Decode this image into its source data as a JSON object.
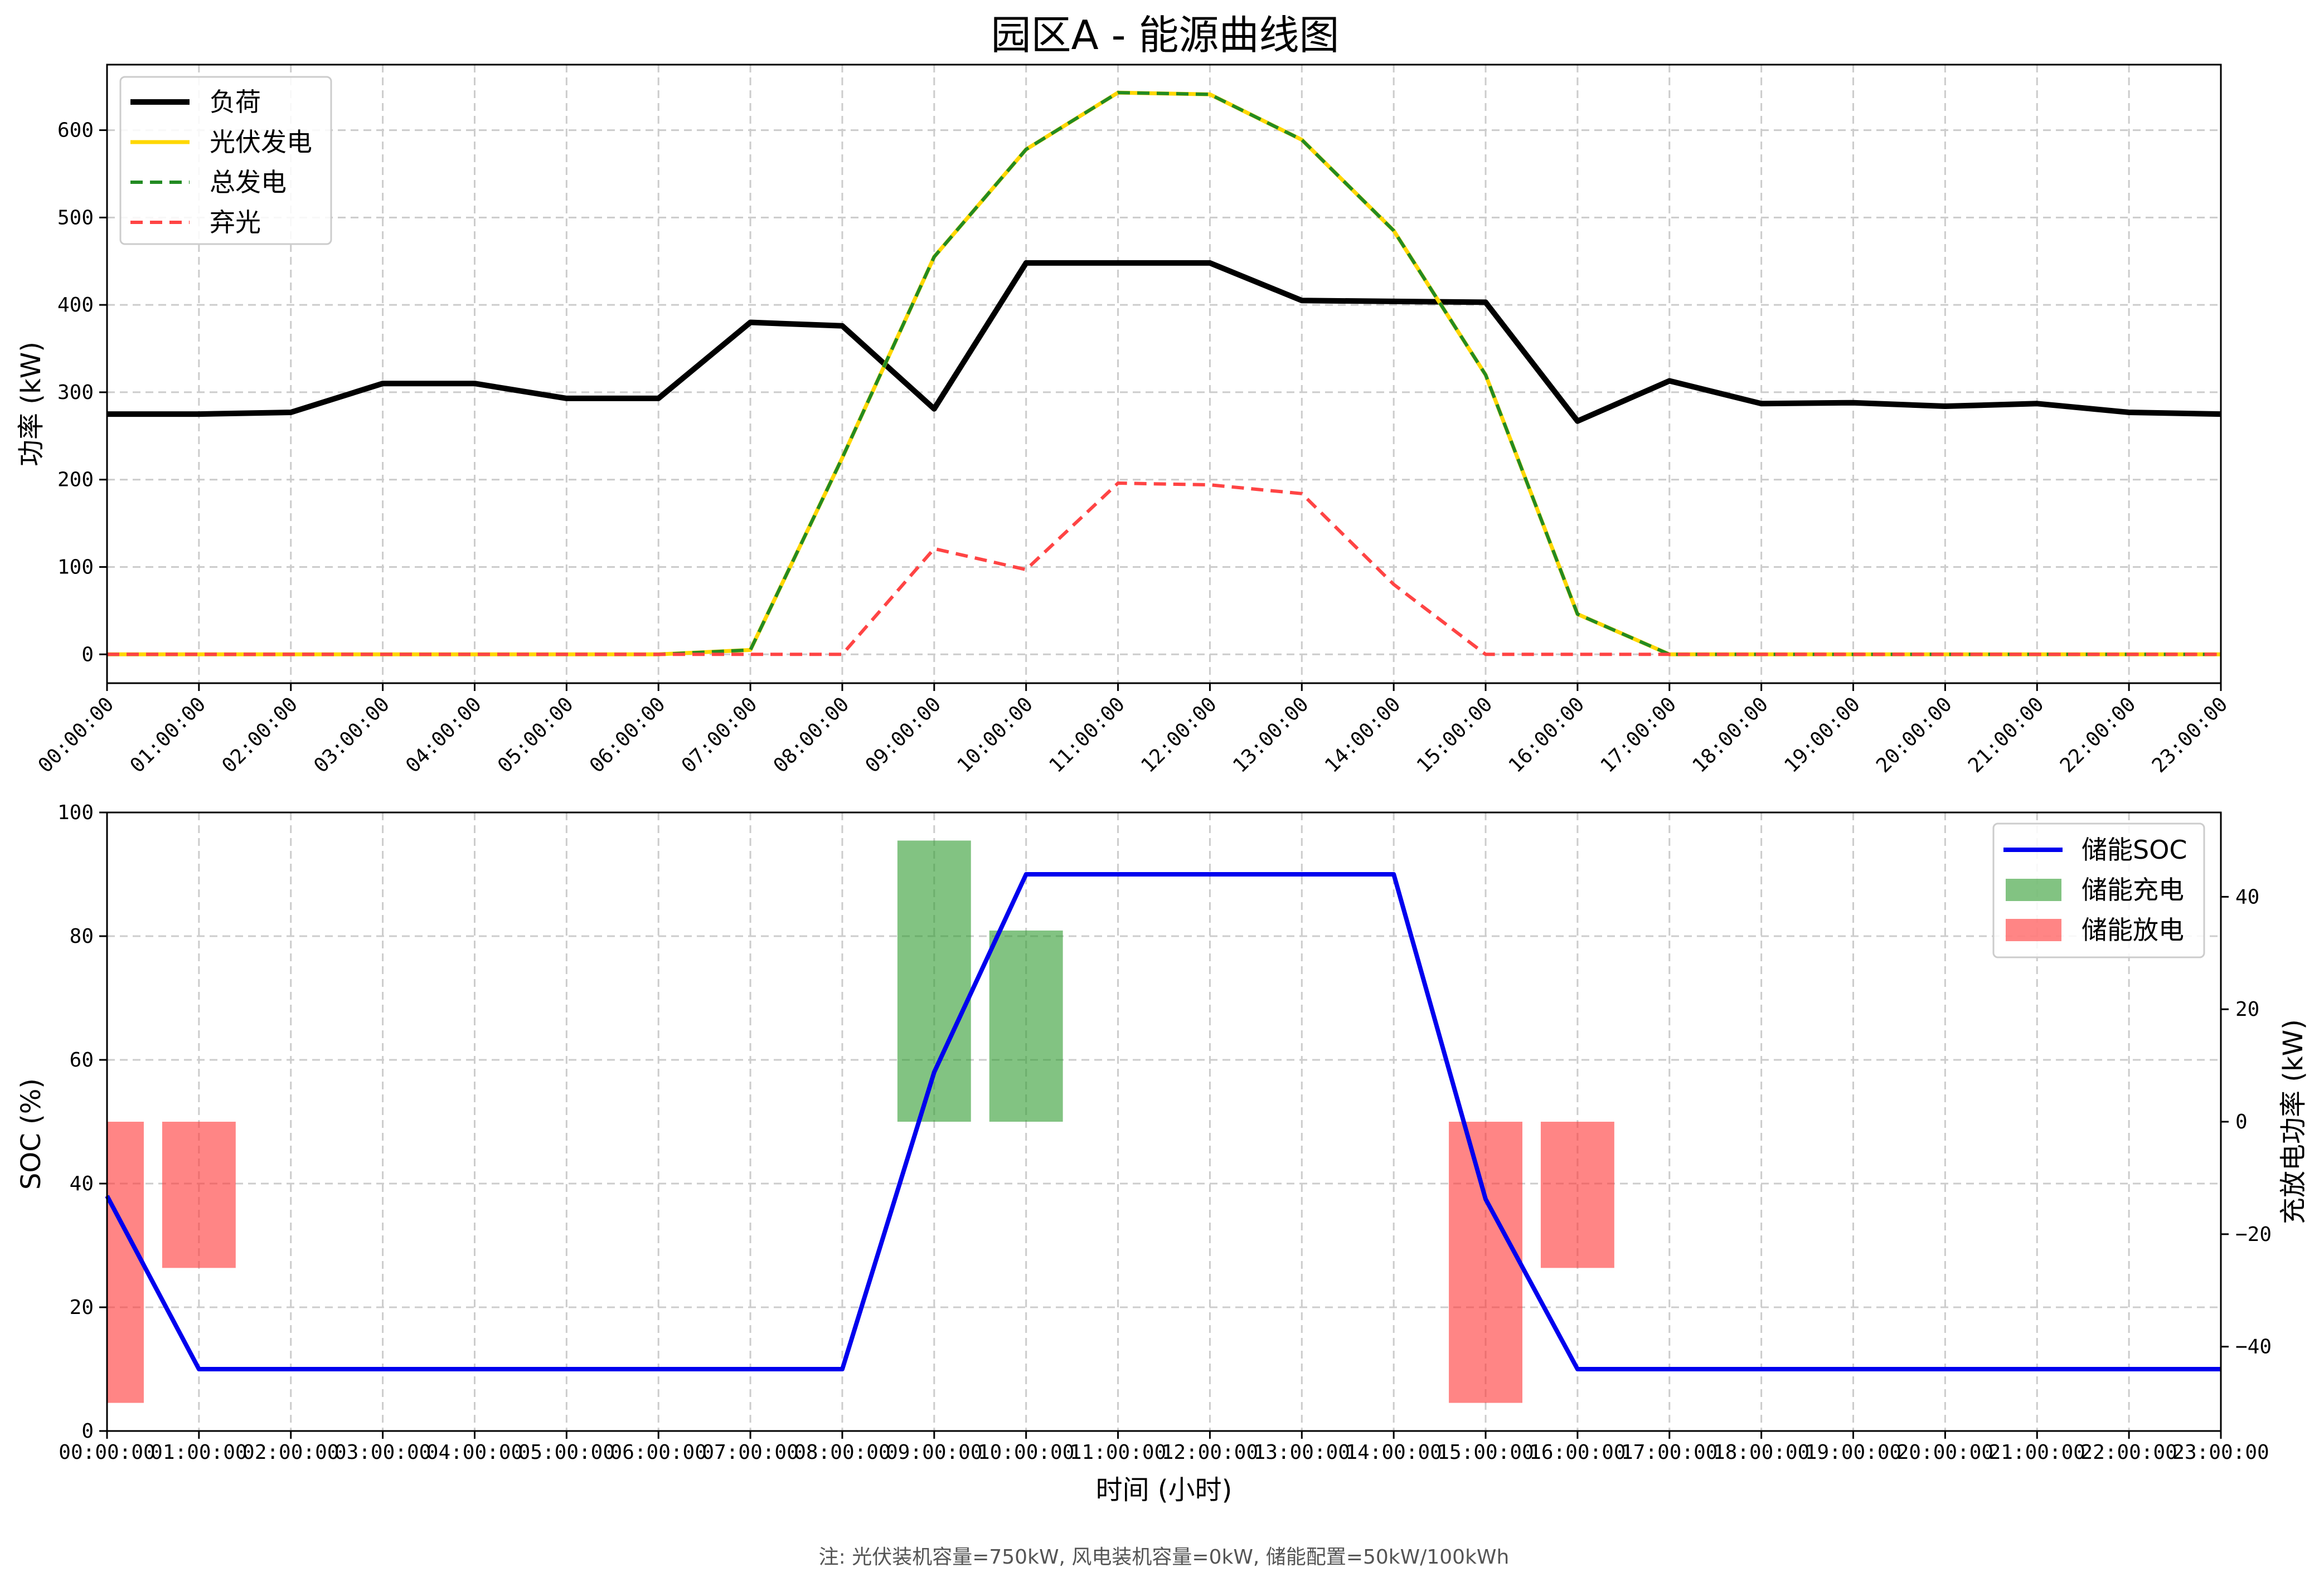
{
  "figure": {
    "title": "园区A - 能源曲线图",
    "note": "注: 光伏装机容量=750kW, 风电装机容量=0kW, 储能配置=50kW/100kWh"
  },
  "colors": {
    "load": "#000000",
    "pv": "#FFD700",
    "total_green": "#228B22",
    "curtail": "#FF4444",
    "soc": "#0000EE",
    "charge": "#2E9B2E",
    "discharge": "#FF3333"
  },
  "chart_data": [
    {
      "type": "line",
      "ylabel": "功率 (kW)",
      "ylim": [
        -33,
        675
      ],
      "yticks": [
        0,
        100,
        200,
        300,
        400,
        500,
        600
      ],
      "grid": true,
      "legend_placement": "top-left",
      "x": [
        "00:00:00",
        "01:00:00",
        "02:00:00",
        "03:00:00",
        "04:00:00",
        "05:00:00",
        "06:00:00",
        "07:00:00",
        "08:00:00",
        "09:00:00",
        "10:00:00",
        "11:00:00",
        "12:00:00",
        "13:00:00",
        "14:00:00",
        "15:00:00",
        "16:00:00",
        "17:00:00",
        "18:00:00",
        "19:00:00",
        "20:00:00",
        "21:00:00",
        "22:00:00",
        "23:00:00"
      ],
      "series": [
        {
          "name": "负荷",
          "style": "solid",
          "values": [
            275,
            275,
            277,
            310,
            310,
            293,
            293,
            380,
            376,
            281,
            448,
            448,
            448,
            405,
            404,
            403,
            267,
            313,
            287,
            288,
            284,
            287,
            277,
            275
          ]
        },
        {
          "name": "光伏发电",
          "style": "solid",
          "values": [
            0,
            0,
            0,
            0,
            0,
            0,
            0,
            5,
            225,
            455,
            578,
            643,
            641,
            589,
            485,
            320,
            46,
            0,
            0,
            0,
            0,
            0,
            0,
            0
          ]
        },
        {
          "name": "总发电",
          "style": "dashed",
          "values": [
            0,
            0,
            0,
            0,
            0,
            0,
            0,
            5,
            225,
            455,
            578,
            643,
            641,
            589,
            485,
            320,
            46,
            0,
            0,
            0,
            0,
            0,
            0,
            0
          ]
        },
        {
          "name": "弃光",
          "style": "dashed",
          "values": [
            0,
            0,
            0,
            0,
            0,
            0,
            0,
            0,
            0,
            121,
            97,
            196,
            194,
            184,
            80,
            0,
            0,
            0,
            0,
            0,
            0,
            0,
            0,
            0
          ]
        }
      ]
    },
    {
      "type": "line",
      "xlabel": "时间 (小时)",
      "ylabel": "SOC (%)",
      "ylim": [
        0,
        100
      ],
      "yticks": [
        0,
        20,
        40,
        60,
        80,
        100
      ],
      "y2label": "充放电功率 (kW)",
      "y2lim": [
        -55,
        55
      ],
      "y2ticks": [
        -40,
        -20,
        0,
        20,
        40
      ],
      "grid": true,
      "legend_placement": "top-right",
      "x": [
        "00:00:00",
        "01:00:00",
        "02:00:00",
        "03:00:00",
        "04:00:00",
        "05:00:00",
        "06:00:00",
        "07:00:00",
        "08:00:00",
        "09:00:00",
        "10:00:00",
        "11:00:00",
        "12:00:00",
        "13:00:00",
        "14:00:00",
        "15:00:00",
        "16:00:00",
        "17:00:00",
        "18:00:00",
        "19:00:00",
        "20:00:00",
        "21:00:00",
        "22:00:00",
        "23:00:00"
      ],
      "series": [
        {
          "name": "储能SOC",
          "axis": "left",
          "type": "line",
          "values": [
            38,
            10,
            10,
            10,
            10,
            10,
            10,
            10,
            10,
            58,
            90,
            90,
            90,
            90,
            90,
            37.5,
            10,
            10,
            10,
            10,
            10,
            10,
            10,
            10
          ]
        },
        {
          "name": "储能充电",
          "axis": "right",
          "type": "bar",
          "values": [
            0,
            0,
            0,
            0,
            0,
            0,
            0,
            0,
            0,
            50,
            34,
            0,
            0,
            0,
            0,
            0,
            0,
            0,
            0,
            0,
            0,
            0,
            0,
            0
          ]
        },
        {
          "name": "储能放电",
          "axis": "right",
          "type": "bar",
          "values": [
            -50,
            -26,
            0,
            0,
            0,
            0,
            0,
            0,
            0,
            0,
            0,
            0,
            0,
            0,
            0,
            -50,
            -26,
            0,
            0,
            0,
            0,
            0,
            0,
            0
          ]
        }
      ]
    }
  ]
}
